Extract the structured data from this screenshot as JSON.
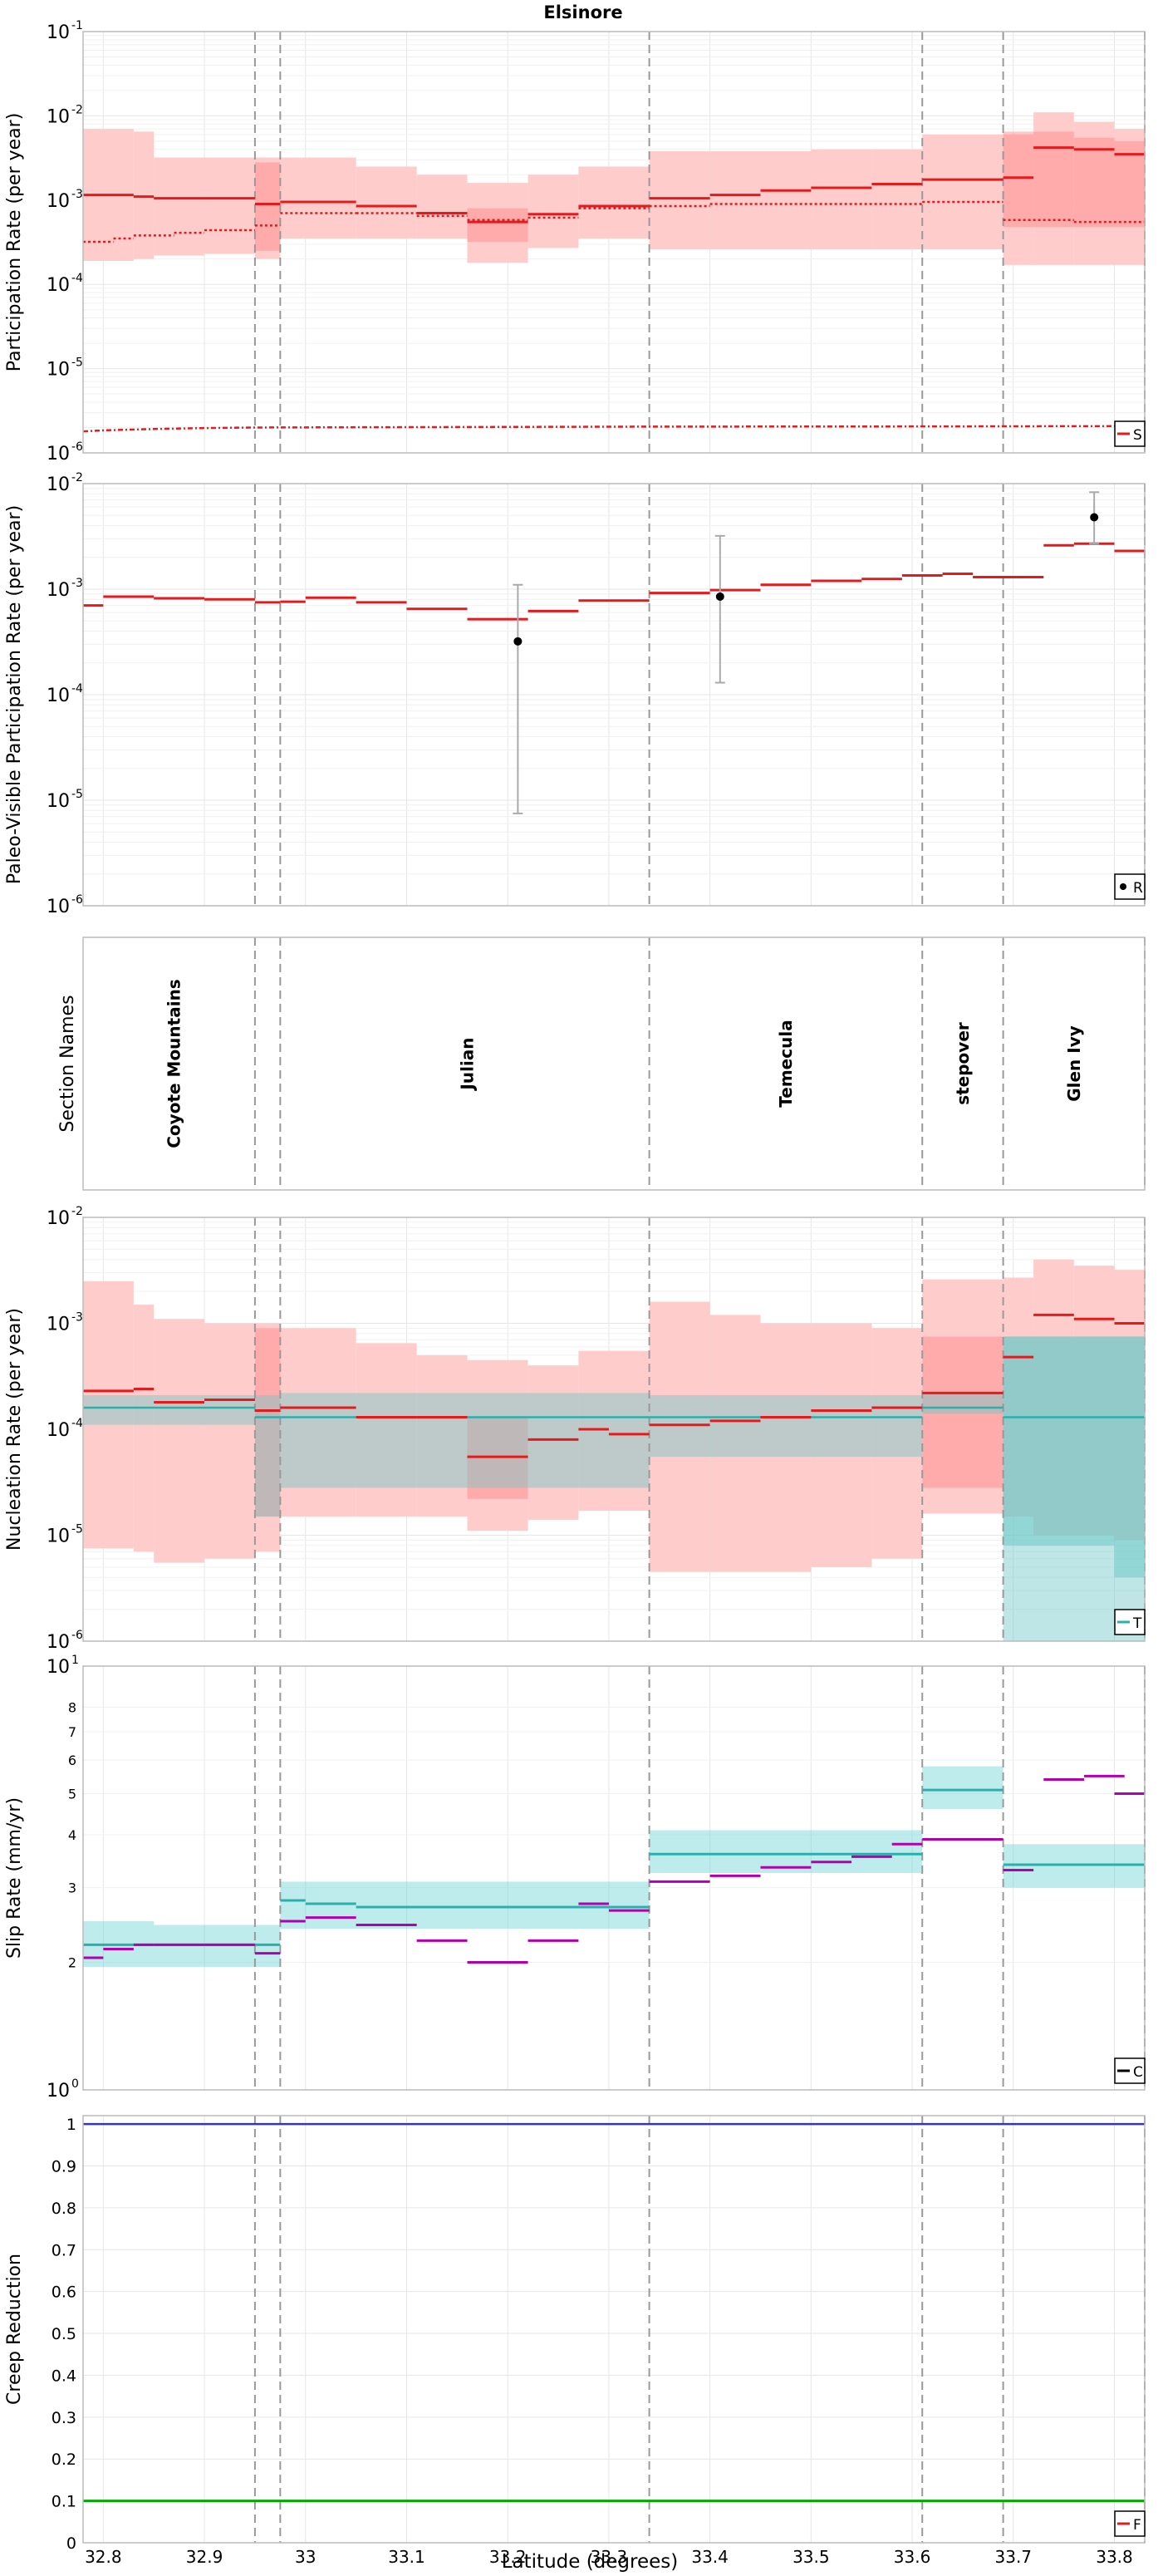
{
  "figure": {
    "title": "Elsinore",
    "xlabel": "Latitude (degrees)",
    "xlim": [
      32.78,
      33.83
    ],
    "xticks": [
      32.8,
      32.9,
      33.0,
      33.1,
      33.2,
      33.3,
      33.4,
      33.5,
      33.6,
      33.7,
      33.8
    ],
    "xtick_labels": [
      "32.8",
      "32.9",
      "33",
      "33.1",
      "33.2",
      "33.3",
      "33.4",
      "33.5",
      "33.6",
      "33.7",
      "33.8"
    ],
    "section_boundaries": [
      32.95,
      32.975,
      33.34,
      33.61,
      33.69,
      33.83
    ],
    "colors": {
      "red": "#e41a1c",
      "light_red": "#ffcccc",
      "mid_red": "#ff9999",
      "cyan": "#2ab0ac",
      "light_cyan": "#a8e3e3",
      "magenta": "#b000b0",
      "blue": "#3333cc",
      "green": "#00aa00",
      "grid": "#e6e6e6",
      "dash": "#999999"
    }
  },
  "chart_data": [
    {
      "id": "participation",
      "type": "line",
      "ylabel": "Participation Rate (per year)",
      "yscale": "log",
      "ylim_exp": [
        -6,
        -1
      ],
      "yticks_exp": [
        -6,
        -5,
        -4,
        -3,
        -2,
        -1
      ],
      "legend": "S",
      "legend_position": "bottom-right",
      "bands_outer": [
        [
          32.78,
          32.83,
          0.00019,
          0.007
        ],
        [
          32.83,
          32.85,
          0.0002,
          0.0065
        ],
        [
          32.85,
          32.9,
          0.00022,
          0.0032
        ],
        [
          32.9,
          32.95,
          0.00023,
          0.0032
        ],
        [
          32.95,
          32.975,
          0.0002,
          0.0032
        ],
        [
          32.975,
          33.05,
          0.00035,
          0.0032
        ],
        [
          33.05,
          33.11,
          0.00035,
          0.0025
        ],
        [
          33.11,
          33.16,
          0.00035,
          0.002
        ],
        [
          33.16,
          33.22,
          0.00018,
          0.0016
        ],
        [
          33.22,
          33.27,
          0.00027,
          0.002
        ],
        [
          33.27,
          33.34,
          0.00035,
          0.0025
        ],
        [
          33.34,
          33.4,
          0.00026,
          0.0038
        ],
        [
          33.4,
          33.45,
          0.00026,
          0.0038
        ],
        [
          33.45,
          33.5,
          0.00026,
          0.0038
        ],
        [
          33.5,
          33.56,
          0.00026,
          0.004
        ],
        [
          33.56,
          33.61,
          0.00026,
          0.004
        ],
        [
          33.61,
          33.69,
          0.00026,
          0.006
        ],
        [
          33.69,
          33.72,
          0.00017,
          0.006
        ],
        [
          33.72,
          33.76,
          0.00017,
          0.011
        ],
        [
          33.76,
          33.8,
          0.00017,
          0.0085
        ],
        [
          33.8,
          33.83,
          0.00017,
          0.007
        ]
      ],
      "bands_inner": [
        [
          32.95,
          32.975,
          0.00025,
          0.0028
        ],
        [
          33.16,
          33.22,
          0.00032,
          0.0008
        ],
        [
          33.69,
          33.72,
          0.00048,
          0.0065
        ],
        [
          33.72,
          33.76,
          0.00048,
          0.0065
        ],
        [
          33.76,
          33.8,
          0.00048,
          0.0055
        ],
        [
          33.8,
          33.83,
          0.00048,
          0.005
        ]
      ],
      "mean_steps": [
        [
          32.78,
          32.83,
          0.00115
        ],
        [
          32.83,
          32.85,
          0.0011
        ],
        [
          32.85,
          32.95,
          0.00105
        ],
        [
          32.95,
          32.975,
          0.0009
        ],
        [
          32.975,
          33.05,
          0.00095
        ],
        [
          33.05,
          33.11,
          0.00085
        ],
        [
          33.11,
          33.16,
          0.0007
        ],
        [
          33.16,
          33.22,
          0.00055
        ],
        [
          33.22,
          33.27,
          0.00068
        ],
        [
          33.27,
          33.34,
          0.00085
        ],
        [
          33.34,
          33.4,
          0.00105
        ],
        [
          33.4,
          33.45,
          0.00115
        ],
        [
          33.45,
          33.5,
          0.0013
        ],
        [
          33.5,
          33.56,
          0.0014
        ],
        [
          33.56,
          33.61,
          0.00155
        ],
        [
          33.61,
          33.69,
          0.00175
        ],
        [
          33.69,
          33.72,
          0.00185
        ],
        [
          33.72,
          33.76,
          0.0042
        ],
        [
          33.76,
          33.8,
          0.004
        ],
        [
          33.8,
          33.83,
          0.0035
        ]
      ],
      "dotted_steps": [
        [
          32.78,
          32.81,
          0.00032
        ],
        [
          32.81,
          32.83,
          0.00035
        ],
        [
          32.83,
          32.87,
          0.00038
        ],
        [
          32.87,
          32.9,
          0.00041
        ],
        [
          32.9,
          32.95,
          0.00044
        ],
        [
          32.95,
          32.975,
          0.0005
        ],
        [
          32.975,
          33.05,
          0.0007
        ],
        [
          33.05,
          33.11,
          0.0007
        ],
        [
          33.11,
          33.16,
          0.00065
        ],
        [
          33.16,
          33.22,
          0.00058
        ],
        [
          33.22,
          33.27,
          0.00062
        ],
        [
          33.27,
          33.34,
          0.0008
        ],
        [
          33.34,
          33.4,
          0.00085
        ],
        [
          33.4,
          33.61,
          0.0009
        ],
        [
          33.61,
          33.69,
          0.00095
        ],
        [
          33.69,
          33.76,
          0.00058
        ],
        [
          33.76,
          33.83,
          0.00055
        ]
      ],
      "low_curve": [
        [
          32.78,
          1.8e-06
        ],
        [
          32.8,
          1.85e-06
        ],
        [
          32.85,
          1.92e-06
        ],
        [
          32.9,
          1.97e-06
        ],
        [
          32.95,
          2e-06
        ],
        [
          33.1,
          2.02e-06
        ],
        [
          33.34,
          2.05e-06
        ],
        [
          33.6,
          2.06e-06
        ],
        [
          33.83,
          2.08e-06
        ]
      ]
    },
    {
      "id": "paleo",
      "type": "line",
      "ylabel": "Paleo-Visible Participation Rate (per year)",
      "yscale": "log",
      "ylim_exp": [
        -6,
        -2
      ],
      "yticks_exp": [
        -6,
        -5,
        -4,
        -3,
        -2
      ],
      "legend": "R",
      "legend_position": "bottom-right",
      "steps": [
        [
          32.78,
          32.8,
          0.0007
        ],
        [
          32.8,
          32.85,
          0.00085
        ],
        [
          32.85,
          32.9,
          0.00082
        ],
        [
          32.9,
          32.95,
          0.0008
        ],
        [
          32.95,
          32.975,
          0.00075
        ],
        [
          32.975,
          33.0,
          0.00076
        ],
        [
          33.0,
          33.05,
          0.00083
        ],
        [
          33.05,
          33.1,
          0.00075
        ],
        [
          33.1,
          33.16,
          0.00065
        ],
        [
          33.16,
          33.22,
          0.00052
        ],
        [
          33.22,
          33.27,
          0.00062
        ],
        [
          33.27,
          33.34,
          0.00078
        ],
        [
          33.34,
          33.4,
          0.00092
        ],
        [
          33.4,
          33.45,
          0.00098
        ],
        [
          33.45,
          33.5,
          0.0011
        ],
        [
          33.5,
          33.55,
          0.0012
        ],
        [
          33.55,
          33.59,
          0.00125
        ],
        [
          33.59,
          33.63,
          0.00135
        ],
        [
          33.63,
          33.66,
          0.0014
        ],
        [
          33.66,
          33.73,
          0.0013
        ],
        [
          33.73,
          33.76,
          0.0026
        ],
        [
          33.76,
          33.8,
          0.0027
        ],
        [
          33.8,
          33.83,
          0.0023
        ]
      ],
      "points": [
        {
          "x": 33.21,
          "y": 0.00032,
          "lo": 7.5e-06,
          "hi": 0.0011
        },
        {
          "x": 33.41,
          "y": 0.00085,
          "lo": 0.00013,
          "hi": 0.0032
        },
        {
          "x": 33.78,
          "y": 0.0048,
          "lo": 0.0027,
          "hi": 0.0083
        }
      ]
    },
    {
      "id": "sections",
      "type": "table",
      "ylabel": "Section Names",
      "sections": [
        {
          "name": "Coyote Mountains",
          "x": 32.87
        },
        {
          "name": "Julian",
          "x": 33.16
        },
        {
          "name": "Temecula",
          "x": 33.475
        },
        {
          "name": "stepover",
          "x": 33.65
        },
        {
          "name": "Glen Ivy",
          "x": 33.76
        }
      ]
    },
    {
      "id": "nucleation",
      "type": "line",
      "ylabel": "Nucleation Rate (per year)",
      "yscale": "log",
      "ylim_exp": [
        -6,
        -2
      ],
      "yticks_exp": [
        -6,
        -5,
        -4,
        -3,
        -2
      ],
      "legend": "T",
      "legend_position": "bottom-right",
      "red_bands": [
        [
          32.78,
          32.83,
          7.5e-06,
          0.0025
        ],
        [
          32.83,
          32.85,
          7e-06,
          0.0015
        ],
        [
          32.85,
          32.9,
          5.5e-06,
          0.0011
        ],
        [
          32.9,
          32.95,
          6e-06,
          0.001
        ],
        [
          32.95,
          32.975,
          7e-06,
          0.001
        ],
        [
          32.975,
          33.05,
          1.5e-05,
          0.0009
        ],
        [
          33.05,
          33.11,
          1.5e-05,
          0.00065
        ],
        [
          33.11,
          33.16,
          1.5e-05,
          0.0005
        ],
        [
          33.16,
          33.22,
          1.1e-05,
          0.00045
        ],
        [
          33.22,
          33.27,
          1.4e-05,
          0.0004
        ],
        [
          33.27,
          33.34,
          1.7e-05,
          0.00055
        ],
        [
          33.34,
          33.4,
          4.5e-06,
          0.0016
        ],
        [
          33.4,
          33.45,
          4.5e-06,
          0.0012
        ],
        [
          33.45,
          33.5,
          4.5e-06,
          0.001
        ],
        [
          33.5,
          33.56,
          5e-06,
          0.001
        ],
        [
          33.56,
          33.61,
          6e-06,
          0.0009
        ],
        [
          33.61,
          33.69,
          1.6e-05,
          0.0026
        ],
        [
          33.69,
          33.72,
          1.5e-05,
          0.0027
        ],
        [
          33.72,
          33.76,
          1e-05,
          0.004
        ],
        [
          33.76,
          33.8,
          1e-05,
          0.0035
        ],
        [
          33.8,
          33.83,
          9e-06,
          0.0032
        ]
      ],
      "red_inner": [
        [
          32.95,
          32.975,
          1.5e-05,
          0.0009
        ],
        [
          33.16,
          33.22,
          2.2e-05,
          0.00013
        ],
        [
          33.61,
          33.69,
          2.8e-05,
          0.00075
        ]
      ],
      "red_steps": [
        [
          32.78,
          32.83,
          0.00023
        ],
        [
          32.83,
          32.85,
          0.00024
        ],
        [
          32.85,
          32.9,
          0.00018
        ],
        [
          32.9,
          32.95,
          0.00019
        ],
        [
          32.95,
          32.975,
          0.00015
        ],
        [
          32.975,
          33.05,
          0.00016
        ],
        [
          33.05,
          33.11,
          0.00013
        ],
        [
          33.11,
          33.16,
          0.00013
        ],
        [
          33.16,
          33.22,
          5.5e-05
        ],
        [
          33.22,
          33.27,
          8e-05
        ],
        [
          33.27,
          33.3,
          0.0001
        ],
        [
          33.3,
          33.34,
          9e-05
        ],
        [
          33.34,
          33.4,
          0.00011
        ],
        [
          33.4,
          33.45,
          0.00012
        ],
        [
          33.45,
          33.5,
          0.00013
        ],
        [
          33.5,
          33.56,
          0.00015
        ],
        [
          33.56,
          33.61,
          0.00016
        ],
        [
          33.61,
          33.69,
          0.00022
        ],
        [
          33.69,
          33.72,
          0.00048
        ],
        [
          33.72,
          33.76,
          0.0012
        ],
        [
          33.76,
          33.8,
          0.0011
        ],
        [
          33.8,
          33.83,
          0.001
        ]
      ],
      "cyan_bands": [
        [
          32.78,
          32.95,
          0.00011,
          0.00021
        ],
        [
          32.95,
          32.975,
          1.5e-05,
          0.00021
        ],
        [
          32.975,
          33.34,
          2.8e-05,
          0.00022
        ],
        [
          33.34,
          33.61,
          5.5e-05,
          0.00021
        ],
        [
          33.61,
          33.69,
          0.00014,
          0.00022
        ],
        [
          33.69,
          33.83,
          1e-06,
          0.00075
        ]
      ],
      "cyan_inner": [
        [
          33.69,
          33.8,
          8e-06,
          0.00075
        ],
        [
          33.8,
          33.83,
          4e-06,
          0.00075
        ]
      ],
      "cyan_steps": [
        [
          32.78,
          32.95,
          0.00016
        ],
        [
          32.95,
          33.34,
          0.00013
        ],
        [
          33.34,
          33.61,
          0.00013
        ],
        [
          33.61,
          33.69,
          0.00016
        ],
        [
          33.69,
          33.83,
          0.00013
        ]
      ]
    },
    {
      "id": "slip",
      "type": "line",
      "ylabel": "Slip Rate (mm/yr)",
      "yscale": "log",
      "ylim_exp": [
        0,
        1
      ],
      "major_ticks": [
        {
          "v": 1,
          "label": "10",
          "exp": "0"
        },
        {
          "v": 10,
          "label": "10",
          "exp": "1"
        }
      ],
      "minor_ticks": [
        2,
        3,
        4,
        5,
        6,
        7,
        8
      ],
      "legend": "C",
      "legend_position": "bottom-right",
      "cyan_bands": [
        [
          32.78,
          32.85,
          1.95,
          2.5
        ],
        [
          32.85,
          32.975,
          1.95,
          2.45
        ],
        [
          32.975,
          33.34,
          2.4,
          3.1
        ],
        [
          33.34,
          33.61,
          3.25,
          4.1
        ],
        [
          33.61,
          33.69,
          4.6,
          5.8
        ],
        [
          33.69,
          33.83,
          3.0,
          3.8
        ]
      ],
      "cyan_steps": [
        [
          32.78,
          32.95,
          2.2
        ],
        [
          32.95,
          32.975,
          2.2
        ],
        [
          32.975,
          33.0,
          2.8
        ],
        [
          33.0,
          33.05,
          2.75
        ],
        [
          33.05,
          33.34,
          2.7
        ],
        [
          33.34,
          33.61,
          3.6
        ],
        [
          33.61,
          33.69,
          5.1
        ],
        [
          33.69,
          33.83,
          3.4
        ]
      ],
      "magenta_steps": [
        [
          32.78,
          32.8,
          2.05
        ],
        [
          32.8,
          32.83,
          2.15
        ],
        [
          32.83,
          32.85,
          2.2
        ],
        [
          32.85,
          32.9,
          2.2
        ],
        [
          32.9,
          32.95,
          2.2
        ],
        [
          32.95,
          32.975,
          2.1
        ],
        [
          32.975,
          33.0,
          2.5
        ],
        [
          33.0,
          33.05,
          2.55
        ],
        [
          33.05,
          33.11,
          2.45
        ],
        [
          33.11,
          33.16,
          2.25
        ],
        [
          33.16,
          33.22,
          2.0
        ],
        [
          33.22,
          33.27,
          2.25
        ],
        [
          33.27,
          33.3,
          2.75
        ],
        [
          33.3,
          33.34,
          2.65
        ],
        [
          33.34,
          33.4,
          3.1
        ],
        [
          33.4,
          33.45,
          3.2
        ],
        [
          33.45,
          33.5,
          3.35
        ],
        [
          33.5,
          33.54,
          3.45
        ],
        [
          33.54,
          33.58,
          3.55
        ],
        [
          33.58,
          33.61,
          3.8
        ],
        [
          33.61,
          33.69,
          3.9
        ],
        [
          33.69,
          33.72,
          3.3
        ],
        [
          33.73,
          33.77,
          5.4
        ],
        [
          33.77,
          33.81,
          5.5
        ],
        [
          33.8,
          33.83,
          5.0
        ]
      ]
    },
    {
      "id": "creep",
      "type": "line",
      "ylabel": "Creep Reduction",
      "yscale": "linear",
      "ylim": [
        0,
        1.02
      ],
      "yticks": [
        0,
        0.1,
        0.2,
        0.3,
        0.4,
        0.5,
        0.6,
        0.7,
        0.8,
        0.9,
        1
      ],
      "ytick_labels": [
        "0",
        "0.1",
        "0.2",
        "0.3",
        "0.4",
        "0.5",
        "0.6",
        "0.7",
        "0.8",
        "0.9",
        "1"
      ],
      "legend": "F",
      "legend_position": "bottom-right",
      "blue_level": 1.0,
      "green_level": 0.1
    }
  ]
}
